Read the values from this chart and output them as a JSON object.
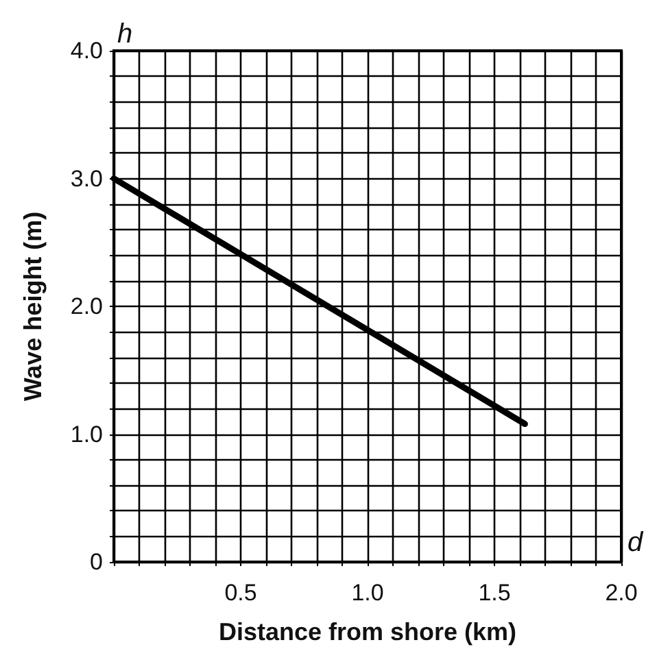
{
  "chart_data": {
    "type": "line",
    "xlabel": "Distance from shore (km)",
    "ylabel": "Wave height (m)",
    "annotations": [
      "h",
      "d"
    ],
    "x": [
      0,
      1.62
    ],
    "series": [
      {
        "color": "#000000",
        "values": [
          3.0,
          1.08
        ]
      }
    ],
    "xlim": [
      0,
      2.0
    ],
    "ylim": [
      0,
      4.0
    ],
    "xticks": [
      {
        "value": 0,
        "label": null
      },
      {
        "value": 0.1,
        "label": null
      },
      {
        "value": 0.2,
        "label": null
      },
      {
        "value": 0.3,
        "label": null
      },
      {
        "value": 0.4,
        "label": null
      },
      {
        "value": 0.5,
        "label": "0.5"
      },
      {
        "value": 0.6,
        "label": null
      },
      {
        "value": 0.7,
        "label": null
      },
      {
        "value": 0.8,
        "label": null
      },
      {
        "value": 0.9,
        "label": null
      },
      {
        "value": 1.0,
        "label": "1.0"
      },
      {
        "value": 1.1,
        "label": null
      },
      {
        "value": 1.2,
        "label": null
      },
      {
        "value": 1.3,
        "label": null
      },
      {
        "value": 1.4,
        "label": null
      },
      {
        "value": 1.5,
        "label": "1.5"
      },
      {
        "value": 1.6,
        "label": null
      },
      {
        "value": 1.7,
        "label": null
      },
      {
        "value": 1.8,
        "label": null
      },
      {
        "value": 1.9,
        "label": null
      },
      {
        "value": 2.0,
        "label": "2.0"
      }
    ],
    "yticks": [
      {
        "value": 0,
        "label": "0"
      },
      {
        "value": 0.2,
        "label": null
      },
      {
        "value": 0.4,
        "label": null
      },
      {
        "value": 0.6,
        "label": null
      },
      {
        "value": 0.8,
        "label": null
      },
      {
        "value": 1.0,
        "label": "1.0"
      },
      {
        "value": 1.2,
        "label": null
      },
      {
        "value": 1.4,
        "label": null
      },
      {
        "value": 1.6,
        "label": null
      },
      {
        "value": 1.8,
        "label": null
      },
      {
        "value": 2.0,
        "label": "2.0"
      },
      {
        "value": 2.2,
        "label": null
      },
      {
        "value": 2.4,
        "label": null
      },
      {
        "value": 2.6,
        "label": null
      },
      {
        "value": 2.8,
        "label": null
      },
      {
        "value": 3.0,
        "label": "3.0"
      },
      {
        "value": 3.2,
        "label": null
      },
      {
        "value": 3.4,
        "label": null
      },
      {
        "value": 3.6,
        "label": null
      },
      {
        "value": 3.8,
        "label": null
      },
      {
        "value": 4.0,
        "label": "4.0"
      }
    ],
    "grid": true,
    "marker": "none"
  }
}
